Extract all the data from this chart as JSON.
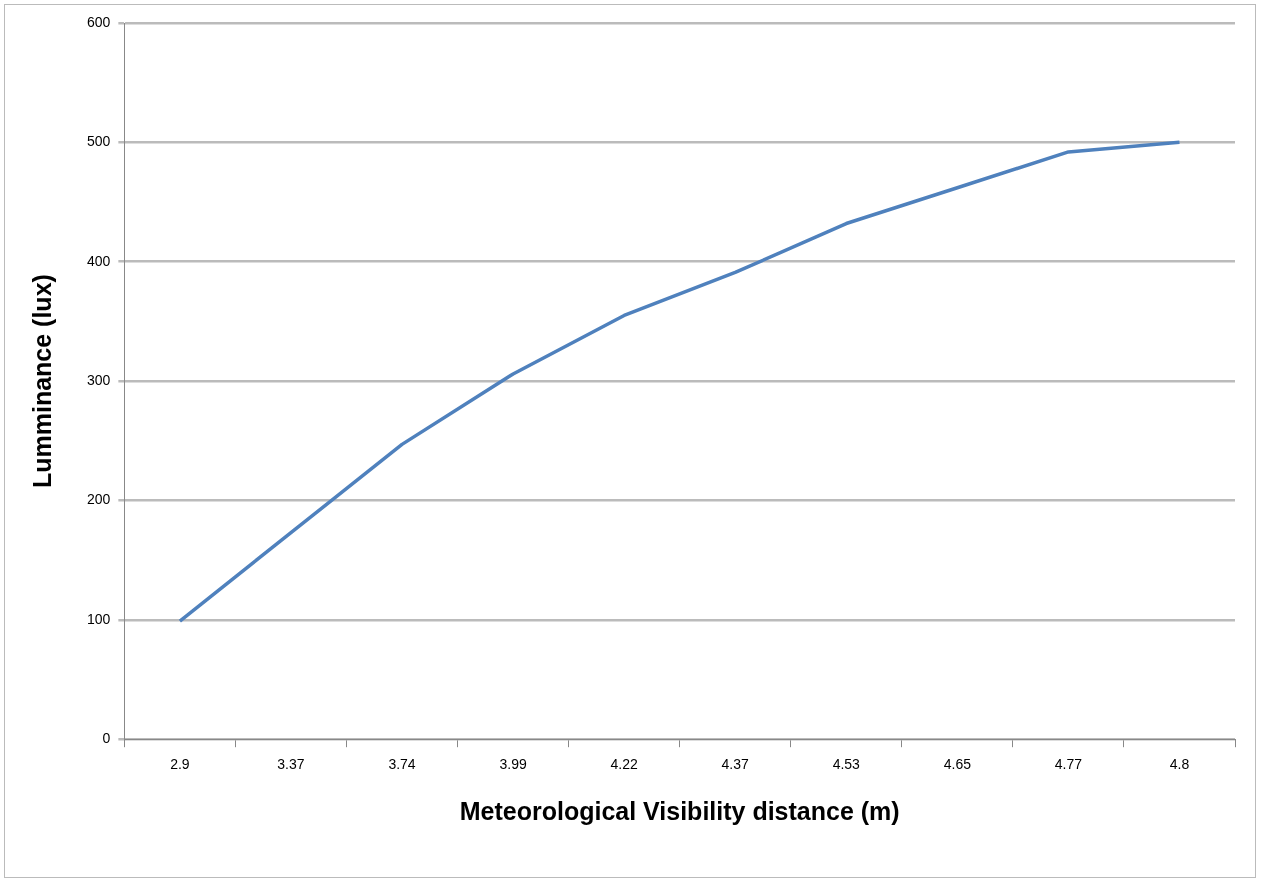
{
  "chart_data": {
    "type": "line",
    "xlabel": "Meteorological Visibility distance (m)",
    "ylabel": "Lumminance (lux)",
    "categories": [
      "2.9",
      "3.37",
      "3.74",
      "3.99",
      "4.22",
      "4.37",
      "4.53",
      "4.65",
      "4.77",
      "4.8"
    ],
    "series": [
      {
        "color": "#4f81bd",
        "values": [
          99,
          173,
          247,
          306,
          355,
          391,
          432,
          462,
          492,
          500
        ]
      }
    ],
    "ylim": [
      0,
      600
    ],
    "yticks": [
      0,
      100,
      200,
      300,
      400,
      500,
      600
    ],
    "grid": "y",
    "legend": false,
    "marker": "none",
    "line_style": "solid"
  }
}
